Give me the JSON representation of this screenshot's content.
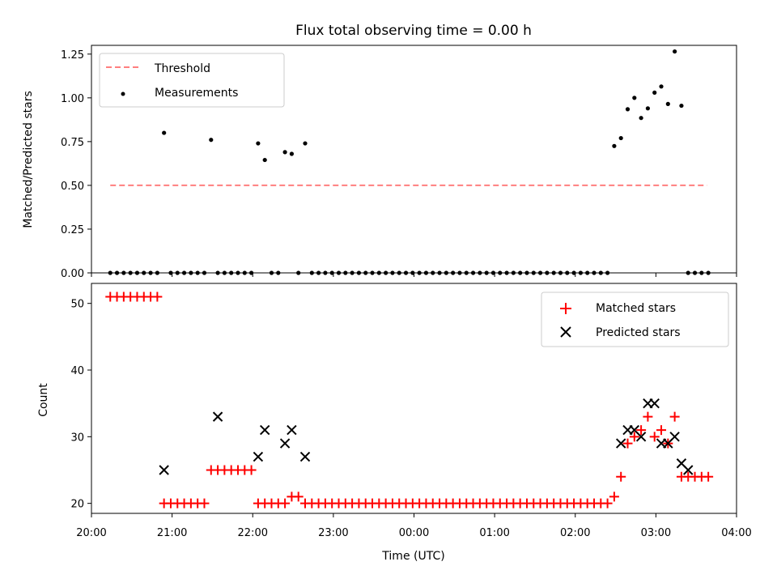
{
  "chart_data": [
    {
      "type": "scatter",
      "title": "Flux total observing time = 0.00 h",
      "xlabel": "",
      "ylabel": "Matched/Predicted stars",
      "xlim": [
        "20:00",
        "04:00"
      ],
      "ylim": [
        0,
        1.3
      ],
      "yticks": [
        0.0,
        0.25,
        0.5,
        0.75,
        1.0,
        1.25
      ],
      "ytick_labels": [
        "0.00",
        "0.25",
        "0.50",
        "0.75",
        "1.00",
        "1.25"
      ],
      "legend_position": "upper-left",
      "series": [
        {
          "name": "Threshold",
          "kind": "dashed-line",
          "color": "#ff7f7f",
          "x": [
            "20:14",
            "23:00",
            "03:38"
          ],
          "y": [
            0.5,
            0.5,
            0.5
          ]
        },
        {
          "name": "Measurements",
          "kind": "dot",
          "color": "#000000",
          "x": [
            "20:14",
            "20:19",
            "20:24",
            "20:29",
            "20:34",
            "20:39",
            "20:44",
            "20:49",
            "20:54",
            "20:59",
            "21:04",
            "21:09",
            "21:14",
            "21:19",
            "21:24",
            "21:29",
            "21:34",
            "21:39",
            "21:44",
            "21:49",
            "21:54",
            "21:59",
            "22:04",
            "22:09",
            "22:14",
            "22:19",
            "22:24",
            "22:29",
            "22:34",
            "22:39",
            "22:44",
            "22:49",
            "22:54",
            "22:59",
            "23:04",
            "23:09",
            "23:14",
            "23:19",
            "23:24",
            "23:29",
            "23:34",
            "23:39",
            "23:44",
            "23:49",
            "23:54",
            "23:59",
            "00:04",
            "00:09",
            "00:14",
            "00:19",
            "00:24",
            "00:29",
            "00:34",
            "00:39",
            "00:44",
            "00:49",
            "00:54",
            "00:59",
            "01:04",
            "01:09",
            "01:14",
            "01:19",
            "01:24",
            "01:29",
            "01:34",
            "01:39",
            "01:44",
            "01:49",
            "01:54",
            "01:59",
            "02:04",
            "02:09",
            "02:14",
            "02:19",
            "02:24",
            "02:29",
            "02:34",
            "02:39",
            "02:44",
            "02:49",
            "02:54",
            "02:59",
            "03:04",
            "03:09",
            "03:14",
            "03:19",
            "03:24",
            "03:29",
            "03:34",
            "03:39"
          ],
          "y": [
            0,
            0,
            0,
            0,
            0,
            0,
            0,
            0,
            0.8,
            0,
            0,
            0,
            0,
            0,
            0,
            0.76,
            0,
            0,
            0,
            0,
            0,
            0,
            0.74,
            0.645,
            0,
            0,
            0.69,
            0.68,
            0,
            0.74,
            0,
            0,
            0,
            0,
            0,
            0,
            0,
            0,
            0,
            0,
            0,
            0,
            0,
            0,
            0,
            0,
            0,
            0,
            0,
            0,
            0,
            0,
            0,
            0,
            0,
            0,
            0,
            0,
            0,
            0,
            0,
            0,
            0,
            0,
            0,
            0,
            0,
            0,
            0,
            0,
            0,
            0,
            0,
            0,
            0,
            0.725,
            0.77,
            0.935,
            1.0,
            0.885,
            0.94,
            1.03,
            1.065,
            0.965,
            1.265,
            0.955,
            0,
            0,
            0,
            0
          ]
        }
      ]
    },
    {
      "type": "scatter",
      "title": "",
      "xlabel": "Time (UTC)",
      "ylabel": "Count",
      "xlim": [
        "20:00",
        "04:00"
      ],
      "xticks": [
        "20:00",
        "21:00",
        "22:00",
        "23:00",
        "00:00",
        "01:00",
        "02:00",
        "03:00",
        "04:00"
      ],
      "yticks": [
        20,
        30,
        40,
        50
      ],
      "legend_position": "upper-right",
      "series": [
        {
          "name": "Matched stars",
          "marker": "+",
          "color": "#ff0000",
          "x": [
            "20:14",
            "20:19",
            "20:24",
            "20:29",
            "20:34",
            "20:39",
            "20:44",
            "20:49",
            "20:54",
            "20:59",
            "21:04",
            "21:09",
            "21:14",
            "21:19",
            "21:24",
            "21:29",
            "21:34",
            "21:39",
            "21:44",
            "21:49",
            "21:54",
            "21:59",
            "22:04",
            "22:09",
            "22:14",
            "22:19",
            "22:24",
            "22:29",
            "22:34",
            "22:39",
            "22:44",
            "22:49",
            "22:54",
            "22:59",
            "23:04",
            "23:09",
            "23:14",
            "23:19",
            "23:24",
            "23:29",
            "23:34",
            "23:39",
            "23:44",
            "23:49",
            "23:54",
            "23:59",
            "00:04",
            "00:09",
            "00:14",
            "00:19",
            "00:24",
            "00:29",
            "00:34",
            "00:39",
            "00:44",
            "00:49",
            "00:54",
            "00:59",
            "01:04",
            "01:09",
            "01:14",
            "01:19",
            "01:24",
            "01:29",
            "01:34",
            "01:39",
            "01:44",
            "01:49",
            "01:54",
            "01:59",
            "02:04",
            "02:09",
            "02:14",
            "02:19",
            "02:24",
            "02:29",
            "02:34",
            "02:39",
            "02:44",
            "02:49",
            "02:54",
            "02:59",
            "03:04",
            "03:09",
            "03:14",
            "03:19",
            "03:24",
            "03:29",
            "03:34",
            "03:39"
          ],
          "y": [
            51,
            51,
            51,
            51,
            51,
            51,
            51,
            51,
            20,
            20,
            20,
            20,
            20,
            20,
            20,
            25,
            25,
            25,
            25,
            25,
            25,
            25,
            20,
            20,
            20,
            20,
            20,
            21,
            21,
            20,
            20,
            20,
            20,
            20,
            20,
            20,
            20,
            20,
            20,
            20,
            20,
            20,
            20,
            20,
            20,
            20,
            20,
            20,
            20,
            20,
            20,
            20,
            20,
            20,
            20,
            20,
            20,
            20,
            20,
            20,
            20,
            20,
            20,
            20,
            20,
            20,
            20,
            20,
            20,
            20,
            20,
            20,
            20,
            20,
            20,
            21,
            24,
            29,
            30,
            31,
            33,
            30,
            31,
            29,
            33,
            24,
            24,
            24,
            24,
            24
          ]
        },
        {
          "name": "Predicted stars",
          "marker": "x",
          "color": "#000000",
          "x": [
            "20:54",
            "21:34",
            "22:04",
            "22:09",
            "22:24",
            "22:29",
            "22:39",
            "02:34",
            "02:39",
            "02:44",
            "02:49",
            "02:54",
            "02:59",
            "03:04",
            "03:09",
            "03:14",
            "03:19",
            "03:24"
          ],
          "y": [
            25,
            33,
            27,
            31,
            29,
            31,
            27,
            29,
            31,
            31,
            30,
            35,
            35,
            29,
            29,
            30,
            26,
            25
          ]
        }
      ]
    }
  ]
}
